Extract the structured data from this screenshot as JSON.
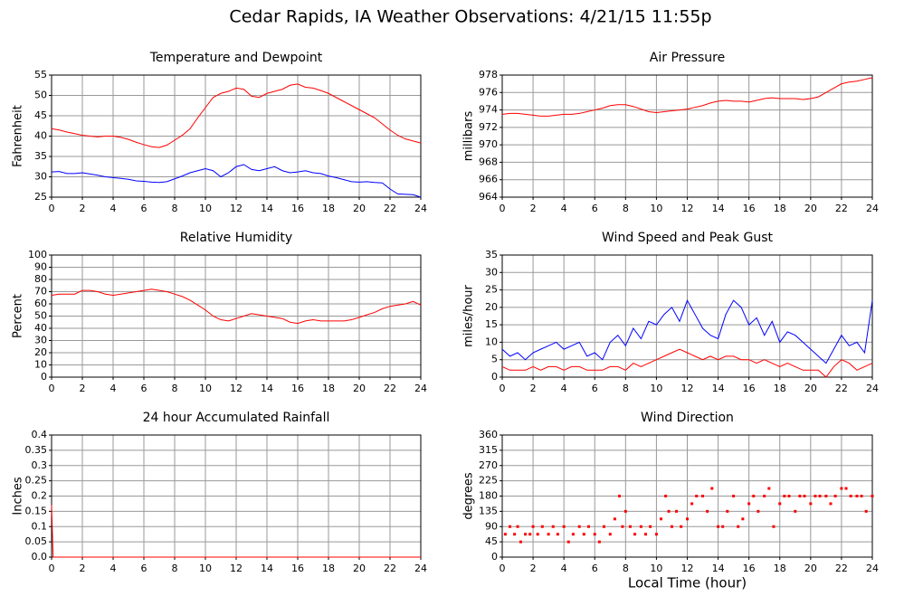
{
  "title": "Cedar Rapids, IA Weather Observations: 4/21/15 11:55p",
  "chart_data": [
    {
      "type": "line",
      "title": "Temperature and Dewpoint",
      "y_label": "Fahrenheit",
      "x": [
        0,
        0.5,
        1,
        1.5,
        2,
        2.5,
        3,
        3.5,
        4,
        4.5,
        5,
        5.5,
        6,
        6.5,
        7,
        7.5,
        8,
        8.5,
        9,
        9.5,
        10,
        10.5,
        11,
        11.5,
        12,
        12.5,
        13,
        13.5,
        14,
        14.5,
        15,
        15.5,
        16,
        16.5,
        17,
        17.5,
        18,
        18.5,
        19,
        19.5,
        20,
        20.5,
        21,
        21.5,
        22,
        22.5,
        23,
        23.5,
        24
      ],
      "series": [
        {
          "color": "#ff0000",
          "values": [
            41.8,
            41.5,
            41.0,
            40.6,
            40.2,
            40.0,
            39.8,
            40.0,
            40.0,
            39.7,
            39.2,
            38.5,
            37.9,
            37.4,
            37.2,
            37.8,
            39.0,
            40.2,
            41.8,
            44.5,
            47.0,
            49.5,
            50.5,
            51.0,
            51.8,
            51.5,
            49.8,
            49.5,
            50.5,
            51.0,
            51.5,
            52.5,
            52.8,
            52.0,
            51.8,
            51.2,
            50.5,
            49.5,
            48.5,
            47.5,
            46.5,
            45.5,
            44.5,
            43.0,
            41.5,
            40.2,
            39.3,
            38.8,
            38.3
          ]
        },
        {
          "color": "#0000ff",
          "values": [
            31.2,
            31.3,
            30.8,
            30.8,
            31.0,
            30.7,
            30.4,
            30.0,
            29.8,
            29.6,
            29.4,
            29.0,
            28.9,
            28.7,
            28.6,
            28.8,
            29.5,
            30.2,
            31.0,
            31.5,
            32.0,
            31.5,
            30.0,
            31.0,
            32.5,
            33.0,
            31.8,
            31.5,
            32.0,
            32.5,
            31.5,
            31.0,
            31.2,
            31.5,
            31.0,
            30.8,
            30.2,
            29.8,
            29.3,
            28.8,
            28.7,
            28.8,
            28.6,
            28.5,
            27.0,
            25.8,
            25.7,
            25.6,
            25.0
          ]
        }
      ],
      "xlim": [
        0,
        24
      ],
      "xticks": [
        0,
        2,
        4,
        6,
        8,
        10,
        12,
        14,
        16,
        18,
        20,
        22,
        24
      ],
      "ylim": [
        25,
        55
      ],
      "yticks": [
        25,
        30,
        35,
        40,
        45,
        50,
        55
      ],
      "grid": true
    },
    {
      "type": "line",
      "title": "Air Pressure",
      "y_label": "millibars",
      "x": [
        0,
        0.5,
        1,
        1.5,
        2,
        2.5,
        3,
        3.5,
        4,
        4.5,
        5,
        5.5,
        6,
        6.5,
        7,
        7.5,
        8,
        8.5,
        9,
        9.5,
        10,
        10.5,
        11,
        11.5,
        12,
        12.5,
        13,
        13.5,
        14,
        14.5,
        15,
        15.5,
        16,
        16.5,
        17,
        17.5,
        18,
        18.5,
        19,
        19.5,
        20,
        20.5,
        21,
        21.5,
        22,
        22.5,
        23,
        23.5,
        24
      ],
      "series": [
        {
          "color": "#ff0000",
          "values": [
            973.5,
            973.6,
            973.6,
            973.5,
            973.4,
            973.3,
            973.3,
            973.4,
            973.5,
            973.5,
            973.6,
            973.8,
            974.0,
            974.2,
            974.5,
            974.6,
            974.6,
            974.4,
            974.1,
            973.8,
            973.7,
            973.8,
            973.9,
            974.0,
            974.1,
            974.3,
            974.5,
            974.8,
            975.0,
            975.1,
            975.0,
            975.0,
            974.9,
            975.1,
            975.3,
            975.4,
            975.3,
            975.3,
            975.3,
            975.2,
            975.3,
            975.5,
            976.0,
            976.5,
            977.0,
            977.2,
            977.3,
            977.5,
            977.7
          ]
        }
      ],
      "xlim": [
        0,
        24
      ],
      "xticks": [
        0,
        2,
        4,
        6,
        8,
        10,
        12,
        14,
        16,
        18,
        20,
        22,
        24
      ],
      "ylim": [
        964,
        978
      ],
      "yticks": [
        964,
        966,
        968,
        970,
        972,
        974,
        976,
        978
      ],
      "grid": true
    },
    {
      "type": "line",
      "title": "Relative Humidity",
      "y_label": "Percent",
      "x": [
        0,
        0.5,
        1,
        1.5,
        2,
        2.5,
        3,
        3.5,
        4,
        4.5,
        5,
        5.5,
        6,
        6.5,
        7,
        7.5,
        8,
        8.5,
        9,
        9.5,
        10,
        10.5,
        11,
        11.5,
        12,
        12.5,
        13,
        13.5,
        14,
        14.5,
        15,
        15.5,
        16,
        16.5,
        17,
        17.5,
        18,
        18.5,
        19,
        19.5,
        20,
        20.5,
        21,
        21.5,
        22,
        22.5,
        23,
        23.5,
        24
      ],
      "series": [
        {
          "color": "#ff0000",
          "values": [
            67,
            68,
            68,
            68,
            71,
            71,
            70,
            68,
            67,
            68,
            69,
            70,
            71,
            72,
            71,
            70,
            68,
            66,
            63,
            59,
            55,
            50,
            47,
            46,
            48,
            50,
            52,
            51,
            50,
            49,
            48,
            45,
            44,
            46,
            47,
            46,
            46,
            46,
            46,
            47,
            49,
            51,
            53,
            56,
            58,
            59,
            60,
            62,
            59
          ]
        }
      ],
      "xlim": [
        0,
        24
      ],
      "xticks": [
        0,
        2,
        4,
        6,
        8,
        10,
        12,
        14,
        16,
        18,
        20,
        22,
        24
      ],
      "ylim": [
        0,
        100
      ],
      "yticks": [
        0,
        10,
        20,
        30,
        40,
        50,
        60,
        70,
        80,
        90,
        100
      ],
      "grid": true
    },
    {
      "type": "line",
      "title": "Wind Speed and Peak Gust",
      "y_label": "miles/hour",
      "x": [
        0,
        0.5,
        1,
        1.5,
        2,
        2.5,
        3,
        3.5,
        4,
        4.5,
        5,
        5.5,
        6,
        6.5,
        7,
        7.5,
        8,
        8.5,
        9,
        9.5,
        10,
        10.5,
        11,
        11.5,
        12,
        12.5,
        13,
        13.5,
        14,
        14.5,
        15,
        15.5,
        16,
        16.5,
        17,
        17.5,
        18,
        18.5,
        19,
        19.5,
        20,
        20.5,
        21,
        21.5,
        22,
        22.5,
        23,
        23.5,
        24
      ],
      "series": [
        {
          "color": "#0000ff",
          "values": [
            8,
            6,
            7,
            5,
            7,
            8,
            9,
            10,
            8,
            9,
            10,
            6,
            7,
            5,
            10,
            12,
            9,
            14,
            11,
            16,
            15,
            18,
            20,
            16,
            22,
            18,
            14,
            12,
            11,
            18,
            22,
            20,
            15,
            17,
            12,
            16,
            10,
            13,
            12,
            10,
            8,
            6,
            4,
            8,
            12,
            9,
            10,
            7,
            22
          ]
        },
        {
          "color": "#ff0000",
          "values": [
            3,
            2,
            2,
            2,
            3,
            2,
            3,
            3,
            2,
            3,
            3,
            2,
            2,
            2,
            3,
            3,
            2,
            4,
            3,
            4,
            5,
            6,
            7,
            8,
            7,
            6,
            5,
            6,
            5,
            6,
            6,
            5,
            5,
            4,
            5,
            4,
            3,
            4,
            3,
            2,
            2,
            2,
            0,
            3,
            5,
            4,
            2,
            3,
            4
          ]
        }
      ],
      "xlim": [
        0,
        24
      ],
      "xticks": [
        0,
        2,
        4,
        6,
        8,
        10,
        12,
        14,
        16,
        18,
        20,
        22,
        24
      ],
      "ylim": [
        0,
        35
      ],
      "yticks": [
        0,
        5,
        10,
        15,
        20,
        25,
        30,
        35
      ],
      "grid": true
    },
    {
      "type": "line",
      "title": "24 hour Accumulated Rainfall",
      "y_label": "Inches",
      "x": [
        0,
        0.1,
        24
      ],
      "series": [
        {
          "color": "#ff0000",
          "values": [
            0.17,
            0,
            0
          ]
        }
      ],
      "xlim": [
        0,
        24
      ],
      "xticks": [
        0,
        2,
        4,
        6,
        8,
        10,
        12,
        14,
        16,
        18,
        20,
        22,
        24
      ],
      "ylim": [
        0,
        0.4
      ],
      "yticks": [
        {
          "value": 0,
          "label": "0.0"
        },
        0.05,
        0.1,
        0.15,
        0.2,
        0.25,
        0.3,
        0.35,
        0.4
      ],
      "grid": true
    },
    {
      "type": "scatter",
      "title": "Wind Direction",
      "y_label": "degrees",
      "x_label": "Local Time (hour)",
      "x": [
        0.2,
        0.5,
        0.8,
        1,
        1.2,
        1.5,
        1.8,
        2,
        2.3,
        2.6,
        3,
        3.3,
        3.6,
        4,
        4.3,
        4.6,
        5,
        5.3,
        5.6,
        6,
        6.3,
        6.6,
        7,
        7.3,
        7.6,
        7.8,
        8,
        8.3,
        8.6,
        9,
        9.3,
        9.6,
        10,
        10.3,
        10.6,
        10.8,
        11,
        11.3,
        11.6,
        12,
        12.3,
        12.6,
        13,
        13.3,
        13.6,
        14,
        14.3,
        14.6,
        15,
        15.3,
        15.6,
        16,
        16.3,
        16.6,
        17,
        17.3,
        17.6,
        18,
        18.3,
        18.6,
        19,
        19.3,
        19.6,
        20,
        20.3,
        20.6,
        21,
        21.3,
        21.6,
        22,
        22.3,
        22.6,
        23,
        23.3,
        23.6,
        24
      ],
      "series": [
        {
          "color": "#ff0000",
          "values": [
            67.5,
            90,
            67.5,
            90,
            45,
            67.5,
            67.5,
            90,
            67.5,
            90,
            67.5,
            90,
            67.5,
            90,
            45,
            67.5,
            90,
            67.5,
            90,
            67.5,
            45,
            90,
            67.5,
            112.5,
            180,
            90,
            135,
            90,
            67.5,
            90,
            67.5,
            90,
            67.5,
            112.5,
            180,
            135,
            90,
            135,
            90,
            112.5,
            157.5,
            180,
            180,
            135,
            202.5,
            90,
            90,
            135,
            180,
            90,
            112.5,
            157.5,
            180,
            135,
            180,
            202.5,
            90,
            157.5,
            180,
            180,
            135,
            180,
            180,
            157.5,
            180,
            180,
            180,
            157.5,
            180,
            202.5,
            202.5,
            180,
            180,
            180,
            135,
            180
          ]
        }
      ],
      "xlim": [
        0,
        24
      ],
      "xticks": [
        0,
        2,
        4,
        6,
        8,
        10,
        12,
        14,
        16,
        18,
        20,
        22,
        24
      ],
      "ylim": [
        0,
        360
      ],
      "yticks": [
        0,
        45,
        90,
        135,
        180,
        225,
        270,
        315,
        360
      ],
      "grid": true
    }
  ]
}
